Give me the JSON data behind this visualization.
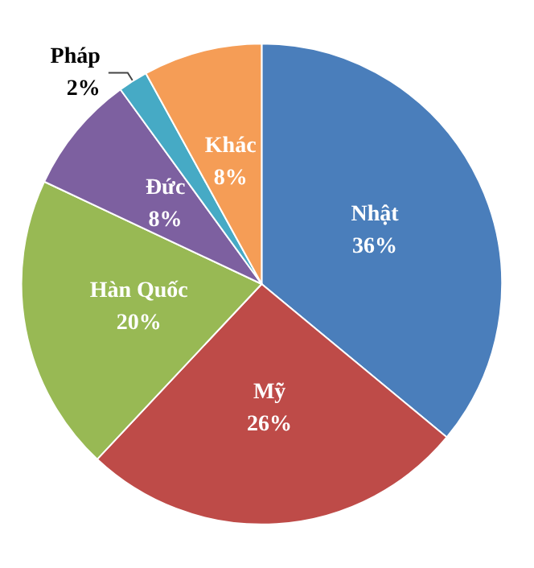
{
  "chart_data": {
    "type": "pie",
    "categories": [
      "Nhật",
      "Mỹ",
      "Hàn Quốc",
      "Đức",
      "Pháp",
      "Khác"
    ],
    "values": [
      36,
      26,
      20,
      8,
      2,
      8
    ],
    "colors": [
      "#4a7ebb",
      "#be4b48",
      "#98b954",
      "#7d60a0",
      "#46aac5",
      "#f59d56"
    ],
    "value_labels": [
      "36%",
      "26%",
      "20%",
      "8%",
      "2%",
      "8%"
    ],
    "legend": false
  }
}
